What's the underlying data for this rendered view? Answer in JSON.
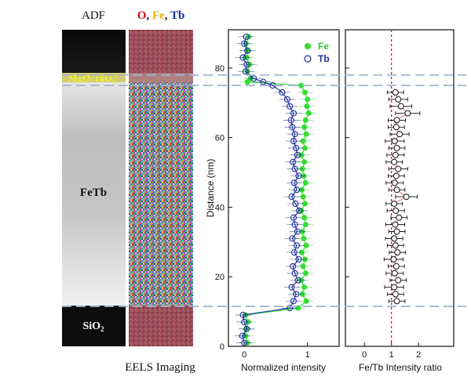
{
  "chart_data": [
    {
      "type": "image-panel",
      "title": "ADF",
      "label_top": "MgO/TaO",
      "label_top_sub": "x",
      "label_middle": "FeTb",
      "label_bottom": "SiO",
      "label_bottom_sub": "2"
    },
    {
      "type": "image-panel",
      "title_parts": [
        "O",
        ", ",
        "Fe",
        ", ",
        "Tb"
      ],
      "title_colors": [
        "#d8001c",
        "#222222",
        "#e6b800",
        "#222222",
        "#1f2f9a"
      ],
      "caption": "EELS Imaging"
    },
    {
      "type": "line+scatter",
      "title": "",
      "xlabel": "Normalized intensity",
      "ylabel": "Distance (nm)",
      "xlim": [
        -0.25,
        1.5
      ],
      "ylim": [
        0,
        91
      ],
      "xticks": [
        0,
        1
      ],
      "yticks": [
        0,
        20,
        40,
        60,
        80
      ],
      "legend": "top-right",
      "series": [
        {
          "name": "Fe",
          "marker": "filled-circle",
          "color": "#33dd33",
          "y": [
            1,
            3,
            5,
            7,
            9,
            11,
            13,
            15,
            17,
            19,
            21,
            23,
            25,
            27,
            29,
            31,
            33,
            35,
            37,
            39,
            41,
            43,
            45,
            47,
            49,
            51,
            53,
            55,
            57,
            59,
            61,
            63,
            65,
            67,
            69,
            71,
            73,
            75,
            76,
            77,
            79,
            81,
            83,
            85,
            87,
            89
          ],
          "x": [
            0.05,
            0.02,
            0.03,
            0.06,
            0.02,
            0.85,
            0.98,
            0.92,
            0.95,
            0.9,
            0.97,
            0.93,
            0.96,
            0.91,
            0.98,
            0.94,
            0.92,
            0.97,
            0.95,
            0.9,
            0.96,
            0.93,
            0.91,
            0.97,
            0.94,
            0.92,
            0.95,
            0.9,
            0.96,
            0.93,
            0.98,
            0.95,
            0.97,
            1.02,
            0.99,
            1.0,
            0.96,
            0.9,
            0.05,
            0.1,
            0.05,
            0.08,
            0.04,
            0.06,
            0.03,
            0.07
          ]
        },
        {
          "name": "Tb",
          "marker": "open-circle",
          "color": "#1f2f9a",
          "y": [
            1,
            3,
            5,
            7,
            9,
            11,
            13,
            15,
            17,
            19,
            21,
            23,
            25,
            27,
            29,
            31,
            33,
            35,
            37,
            39,
            41,
            43,
            45,
            47,
            49,
            51,
            53,
            55,
            57,
            59,
            61,
            63,
            65,
            67,
            69,
            71,
            73,
            75,
            76,
            77,
            79,
            81,
            83,
            85,
            87,
            89
          ],
          "x": [
            0.0,
            -0.03,
            0.04,
            0.0,
            -0.02,
            0.72,
            0.78,
            0.82,
            0.75,
            0.85,
            0.8,
            0.77,
            0.86,
            0.79,
            0.83,
            0.76,
            0.84,
            0.8,
            0.78,
            0.87,
            0.81,
            0.75,
            0.83,
            0.79,
            0.86,
            0.8,
            0.77,
            0.84,
            0.82,
            0.78,
            0.8,
            0.76,
            0.74,
            0.78,
            0.72,
            0.68,
            0.6,
            0.45,
            0.3,
            0.15,
            0.02,
            0.04,
            -0.02,
            0.05,
            0.0,
            0.03
          ]
        }
      ]
    },
    {
      "type": "scatter",
      "title": "",
      "xlabel": "Fe/Tb Intensity ratio",
      "xlim": [
        -0.7,
        3.3
      ],
      "ylim": [
        0,
        91
      ],
      "xticks": [
        0,
        1,
        2
      ],
      "reference_line_x": 1.0,
      "series": [
        {
          "name": "Fe/Tb",
          "marker": "open-circle-with-error",
          "color": "#111111",
          "y": [
            13,
            15,
            17,
            19,
            21,
            23,
            25,
            27,
            29,
            31,
            33,
            35,
            37,
            39,
            41,
            43,
            45,
            47,
            49,
            51,
            53,
            55,
            57,
            59,
            61,
            63,
            65,
            67,
            69,
            71,
            73
          ],
          "x": [
            1.2,
            1.15,
            1.1,
            1.25,
            1.12,
            1.18,
            1.08,
            1.22,
            1.15,
            1.1,
            1.2,
            1.14,
            1.28,
            1.16,
            1.1,
            1.55,
            1.2,
            1.12,
            1.18,
            1.25,
            1.1,
            1.15,
            1.2,
            1.12,
            1.3,
            1.18,
            1.2,
            1.6,
            1.35,
            1.25,
            1.15
          ],
          "err": [
            0.3,
            0.3,
            0.35,
            0.3,
            0.32,
            0.3,
            0.35,
            0.3,
            0.3,
            0.32,
            0.3,
            0.35,
            0.3,
            0.32,
            0.3,
            0.4,
            0.3,
            0.32,
            0.3,
            0.35,
            0.3,
            0.32,
            0.3,
            0.35,
            0.35,
            0.3,
            0.32,
            0.45,
            0.4,
            0.35,
            0.3
          ]
        }
      ]
    }
  ],
  "interface_lines_nm": [
    78,
    75,
    11.5
  ]
}
